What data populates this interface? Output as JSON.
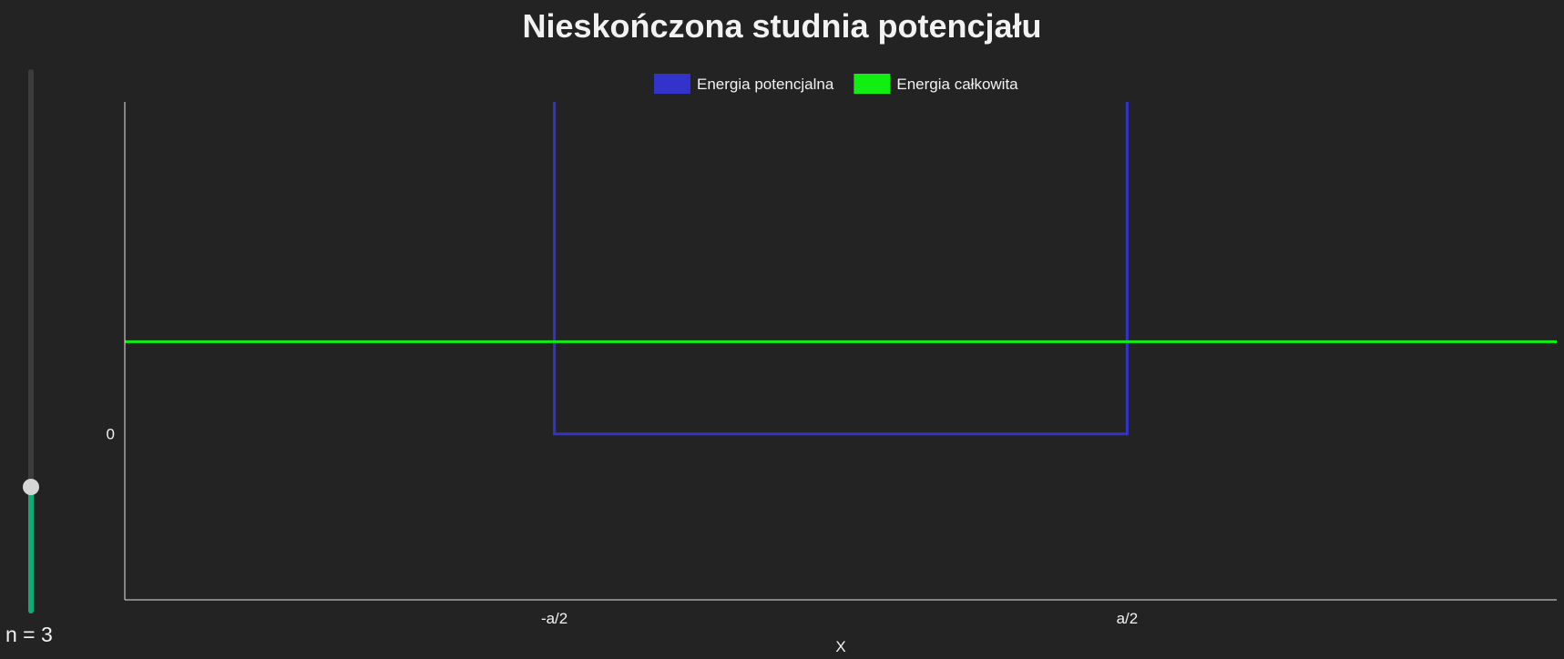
{
  "title": "Nieskończona studnia potencjału",
  "slider": {
    "label": "n",
    "separator": " = ",
    "value": 3,
    "min": 1,
    "max": 10
  },
  "chart_data": {
    "type": "line",
    "title": "Nieskończona studnia potencjału",
    "xlabel": "X",
    "ylabel": "",
    "legend": "top-center",
    "grid": false,
    "x_ticks": [
      "-a/2",
      "a/2"
    ],
    "y_ticks": [
      "0"
    ],
    "x_range": [
      -1.25,
      1.25
    ],
    "y_range": [
      -1.8,
      3.6
    ],
    "series": [
      {
        "name": "Energia potencjalna",
        "color": "#3333cc",
        "x": [
          -0.5,
          -0.5,
          0.5,
          0.5
        ],
        "y": [
          3.6,
          0,
          0,
          3.6
        ]
      },
      {
        "name": "Energia całkowita",
        "color": "#11ee11",
        "x": [
          -1.25,
          1.25
        ],
        "y": [
          1,
          1
        ]
      }
    ]
  }
}
